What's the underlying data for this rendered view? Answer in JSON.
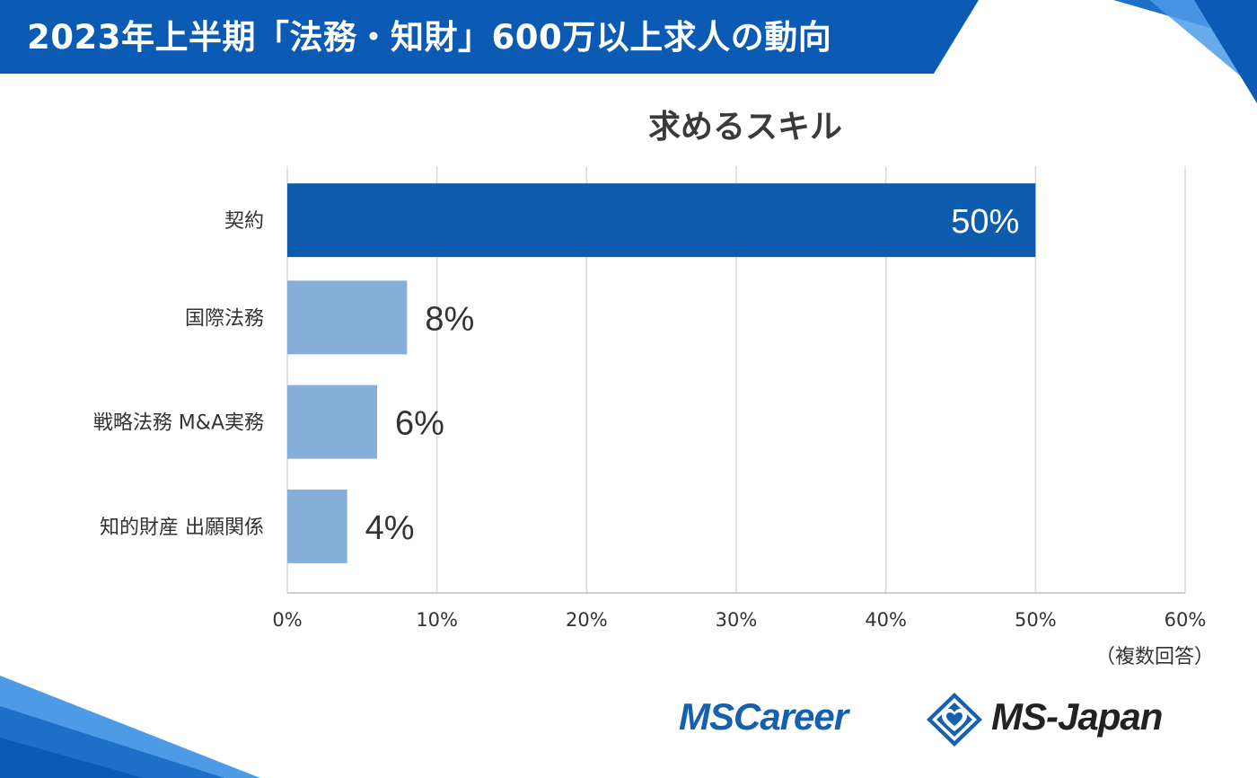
{
  "header": {
    "title": "2023年上半期「法務・知財」600万以上求人の動向"
  },
  "colors": {
    "header_blue": "#0b5bb5",
    "highlight_bar": "#0e5cad",
    "normal_bar": "#85afd9",
    "grid": "#d9d9d9",
    "logo_blue": "#1660b0"
  },
  "chart_data": {
    "type": "bar",
    "orientation": "horizontal",
    "title": "求めるスキル",
    "categories": [
      "契約",
      "国際法務",
      "戦略法務 M&A実務",
      "知的財産 出願関係"
    ],
    "values": [
      50,
      8,
      6,
      4
    ],
    "value_labels": [
      "50%",
      "8%",
      "6%",
      "4%"
    ],
    "highlight_index": 0,
    "xlim": [
      0,
      60
    ],
    "x_ticks": [
      "0%",
      "10%",
      "20%",
      "30%",
      "40%",
      "50%",
      "60%"
    ],
    "grid": true,
    "note": "（複数回答）"
  },
  "logos": {
    "left": "MSCareer",
    "right": "MS-Japan",
    "mark_icon": "diamond-heart-icon"
  }
}
